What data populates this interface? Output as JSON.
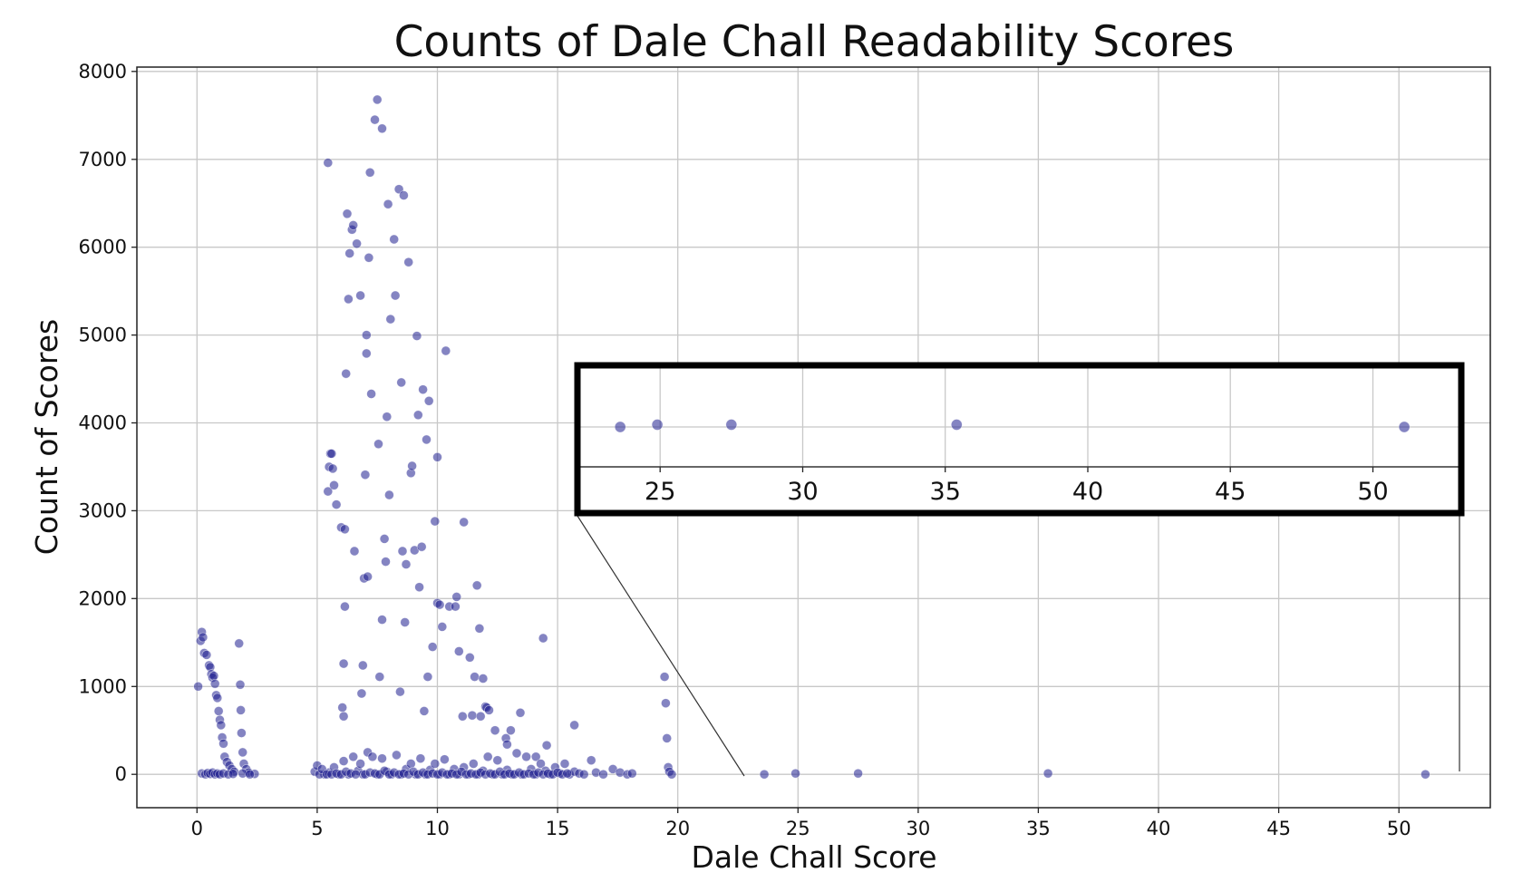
{
  "chart_data": {
    "type": "scatter",
    "title": "Counts of Dale Chall Readability Scores",
    "xlabel": "Dale Chall Score",
    "ylabel": "Count of Scores",
    "xlim": [
      -2.5,
      53.8
    ],
    "ylim": [
      -380,
      8050
    ],
    "xticks": [
      0,
      5,
      10,
      15,
      20,
      25,
      30,
      35,
      40,
      45,
      50
    ],
    "yticks": [
      0,
      1000,
      2000,
      3000,
      4000,
      5000,
      6000,
      7000,
      8000
    ],
    "grid": true,
    "marker_color": "#1f1f8f",
    "points": [
      [
        0.05,
        1000
      ],
      [
        0.15,
        1520
      ],
      [
        0.2,
        1620
      ],
      [
        0.25,
        1560
      ],
      [
        0.3,
        1380
      ],
      [
        0.4,
        1360
      ],
      [
        0.5,
        1240
      ],
      [
        0.55,
        1220
      ],
      [
        0.6,
        1140
      ],
      [
        0.65,
        1100
      ],
      [
        0.7,
        1120
      ],
      [
        0.75,
        1030
      ],
      [
        0.8,
        900
      ],
      [
        0.85,
        870
      ],
      [
        0.9,
        720
      ],
      [
        0.95,
        620
      ],
      [
        1.0,
        560
      ],
      [
        1.05,
        420
      ],
      [
        1.1,
        350
      ],
      [
        1.15,
        200
      ],
      [
        1.25,
        140
      ],
      [
        1.35,
        100
      ],
      [
        1.45,
        60
      ],
      [
        1.55,
        30
      ],
      [
        1.75,
        1490
      ],
      [
        1.8,
        1020
      ],
      [
        1.82,
        730
      ],
      [
        1.85,
        470
      ],
      [
        1.9,
        250
      ],
      [
        1.95,
        120
      ],
      [
        2.05,
        60
      ],
      [
        2.15,
        20
      ],
      [
        2.4,
        5
      ],
      [
        0.2,
        10
      ],
      [
        0.35,
        0
      ],
      [
        0.45,
        15
      ],
      [
        0.55,
        5
      ],
      [
        0.65,
        20
      ],
      [
        0.75,
        0
      ],
      [
        0.85,
        10
      ],
      [
        0.95,
        0
      ],
      [
        1.1,
        10
      ],
      [
        1.3,
        0
      ],
      [
        1.5,
        5
      ],
      [
        1.9,
        10
      ],
      [
        2.2,
        0
      ],
      [
        5.45,
        6960
      ],
      [
        6.1,
        1260
      ],
      [
        6.05,
        760
      ],
      [
        6.1,
        660
      ],
      [
        6.15,
        1910
      ],
      [
        6.2,
        4560
      ],
      [
        6.25,
        6380
      ],
      [
        6.3,
        5410
      ],
      [
        6.35,
        5930
      ],
      [
        6.45,
        6200
      ],
      [
        6.5,
        6250
      ],
      [
        6.55,
        2540
      ],
      [
        6.65,
        6040
      ],
      [
        6.8,
        5450
      ],
      [
        6.85,
        920
      ],
      [
        6.9,
        1240
      ],
      [
        6.95,
        2230
      ],
      [
        7.0,
        3410
      ],
      [
        7.05,
        5000
      ],
      [
        7.05,
        4790
      ],
      [
        7.1,
        2250
      ],
      [
        7.15,
        5880
      ],
      [
        7.2,
        6850
      ],
      [
        7.25,
        4330
      ],
      [
        7.4,
        7450
      ],
      [
        7.5,
        7680
      ],
      [
        7.55,
        3760
      ],
      [
        7.6,
        1110
      ],
      [
        7.7,
        1760
      ],
      [
        7.7,
        7350
      ],
      [
        7.8,
        2680
      ],
      [
        7.85,
        2420
      ],
      [
        7.9,
        4070
      ],
      [
        7.95,
        6490
      ],
      [
        8.0,
        3180
      ],
      [
        8.05,
        5180
      ],
      [
        8.2,
        6090
      ],
      [
        8.25,
        5450
      ],
      [
        8.4,
        6660
      ],
      [
        8.45,
        940
      ],
      [
        8.5,
        4460
      ],
      [
        8.55,
        2540
      ],
      [
        8.6,
        6590
      ],
      [
        8.65,
        1730
      ],
      [
        8.7,
        2390
      ],
      [
        8.8,
        5830
      ],
      [
        8.9,
        3430
      ],
      [
        8.95,
        3510
      ],
      [
        9.05,
        2550
      ],
      [
        9.15,
        4990
      ],
      [
        9.2,
        4090
      ],
      [
        9.25,
        2130
      ],
      [
        9.35,
        2590
      ],
      [
        9.4,
        4380
      ],
      [
        9.45,
        720
      ],
      [
        9.55,
        3810
      ],
      [
        9.65,
        4250
      ],
      [
        9.6,
        1110
      ],
      [
        9.8,
        1450
      ],
      [
        9.9,
        2880
      ],
      [
        10.0,
        3610
      ],
      [
        10.0,
        1950
      ],
      [
        10.1,
        1930
      ],
      [
        10.2,
        1680
      ],
      [
        10.35,
        4820
      ],
      [
        10.5,
        1910
      ],
      [
        10.75,
        1910
      ],
      [
        10.8,
        2020
      ],
      [
        10.9,
        1400
      ],
      [
        11.05,
        660
      ],
      [
        11.1,
        2870
      ],
      [
        11.35,
        1330
      ],
      [
        11.45,
        670
      ],
      [
        11.55,
        1110
      ],
      [
        11.65,
        2150
      ],
      [
        11.75,
        1660
      ],
      [
        11.8,
        660
      ],
      [
        11.9,
        1090
      ],
      [
        12.0,
        770
      ],
      [
        12.05,
        760
      ],
      [
        12.15,
        730
      ],
      [
        12.4,
        500
      ],
      [
        12.85,
        410
      ],
      [
        12.9,
        340
      ],
      [
        13.05,
        500
      ],
      [
        13.45,
        700
      ],
      [
        14.1,
        200
      ],
      [
        14.4,
        1550
      ],
      [
        14.55,
        330
      ],
      [
        15.7,
        560
      ],
      [
        5.55,
        3650
      ],
      [
        5.6,
        3650
      ],
      [
        5.5,
        3500
      ],
      [
        5.65,
        3480
      ],
      [
        5.45,
        3220
      ],
      [
        5.7,
        3290
      ],
      [
        5.8,
        3070
      ],
      [
        6.0,
        2810
      ],
      [
        6.15,
        2790
      ],
      [
        19.45,
        1110
      ],
      [
        19.5,
        810
      ],
      [
        19.55,
        410
      ],
      [
        19.6,
        80
      ],
      [
        19.65,
        30
      ],
      [
        19.75,
        0
      ],
      [
        5.3,
        0
      ],
      [
        5.5,
        20
      ],
      [
        5.7,
        80
      ],
      [
        5.9,
        0
      ],
      [
        6.1,
        150
      ],
      [
        6.3,
        0
      ],
      [
        6.5,
        200
      ],
      [
        6.7,
        40
      ],
      [
        6.9,
        0
      ],
      [
        7.1,
        250
      ],
      [
        7.3,
        200
      ],
      [
        7.5,
        0
      ],
      [
        7.7,
        180
      ],
      [
        7.9,
        30
      ],
      [
        8.1,
        0
      ],
      [
        8.3,
        220
      ],
      [
        8.5,
        0
      ],
      [
        8.7,
        60
      ],
      [
        8.9,
        120
      ],
      [
        9.1,
        0
      ],
      [
        9.3,
        180
      ],
      [
        9.5,
        0
      ],
      [
        9.7,
        50
      ],
      [
        9.9,
        120
      ],
      [
        10.1,
        0
      ],
      [
        10.3,
        170
      ],
      [
        10.5,
        0
      ],
      [
        10.7,
        60
      ],
      [
        10.9,
        0
      ],
      [
        11.1,
        80
      ],
      [
        11.3,
        0
      ],
      [
        11.5,
        120
      ],
      [
        11.7,
        0
      ],
      [
        11.9,
        40
      ],
      [
        12.1,
        200
      ],
      [
        12.3,
        0
      ],
      [
        12.5,
        160
      ],
      [
        12.7,
        0
      ],
      [
        12.9,
        50
      ],
      [
        13.1,
        0
      ],
      [
        13.3,
        240
      ],
      [
        13.5,
        0
      ],
      [
        13.7,
        200
      ],
      [
        13.9,
        60
      ],
      [
        14.1,
        0
      ],
      [
        14.3,
        120
      ],
      [
        14.5,
        40
      ],
      [
        14.7,
        0
      ],
      [
        14.9,
        80
      ],
      [
        15.1,
        10
      ],
      [
        15.3,
        120
      ],
      [
        15.5,
        0
      ],
      [
        15.7,
        30
      ],
      [
        15.9,
        10
      ],
      [
        16.1,
        0
      ],
      [
        16.4,
        160
      ],
      [
        16.6,
        20
      ],
      [
        16.9,
        0
      ],
      [
        17.3,
        60
      ],
      [
        17.6,
        20
      ],
      [
        17.9,
        0
      ],
      [
        18.1,
        10
      ],
      [
        4.9,
        30
      ],
      [
        5.0,
        100
      ],
      [
        5.1,
        0
      ],
      [
        5.2,
        60
      ],
      [
        5.4,
        0
      ],
      [
        5.6,
        0
      ],
      [
        5.8,
        10
      ],
      [
        6.0,
        0
      ],
      [
        6.2,
        30
      ],
      [
        6.4,
        10
      ],
      [
        6.6,
        0
      ],
      [
        6.8,
        120
      ],
      [
        7.0,
        0
      ],
      [
        7.2,
        20
      ],
      [
        7.4,
        10
      ],
      [
        7.6,
        0
      ],
      [
        7.8,
        40
      ],
      [
        8.0,
        0
      ],
      [
        8.2,
        20
      ],
      [
        8.4,
        0
      ],
      [
        8.6,
        10
      ],
      [
        8.8,
        0
      ],
      [
        9.0,
        30
      ],
      [
        9.2,
        0
      ],
      [
        9.4,
        20
      ],
      [
        9.6,
        0
      ],
      [
        9.8,
        10
      ],
      [
        10.0,
        0
      ],
      [
        10.2,
        20
      ],
      [
        10.4,
        0
      ],
      [
        10.6,
        10
      ],
      [
        10.8,
        0
      ],
      [
        11.0,
        30
      ],
      [
        11.2,
        0
      ],
      [
        11.4,
        10
      ],
      [
        11.6,
        0
      ],
      [
        11.8,
        20
      ],
      [
        12.0,
        0
      ],
      [
        12.2,
        10
      ],
      [
        12.4,
        0
      ],
      [
        12.6,
        30
      ],
      [
        12.8,
        0
      ],
      [
        13.0,
        10
      ],
      [
        13.2,
        0
      ],
      [
        13.4,
        20
      ],
      [
        13.6,
        0
      ],
      [
        13.8,
        10
      ],
      [
        14.0,
        0
      ],
      [
        14.2,
        20
      ],
      [
        14.4,
        0
      ],
      [
        14.6,
        10
      ],
      [
        14.8,
        0
      ],
      [
        15.0,
        20
      ],
      [
        15.2,
        0
      ],
      [
        15.4,
        10
      ],
      [
        23.6,
        0
      ],
      [
        24.9,
        10
      ],
      [
        27.5,
        10
      ],
      [
        35.4,
        10
      ],
      [
        51.1,
        0
      ]
    ],
    "inset": {
      "xlim": [
        22.1,
        53.1
      ],
      "xticks": [
        25,
        30,
        35,
        40,
        45,
        50
      ],
      "points": [
        [
          23.6,
          0
        ],
        [
          24.9,
          10
        ],
        [
          27.5,
          10
        ],
        [
          35.4,
          10
        ],
        [
          51.1,
          0
        ]
      ]
    }
  }
}
